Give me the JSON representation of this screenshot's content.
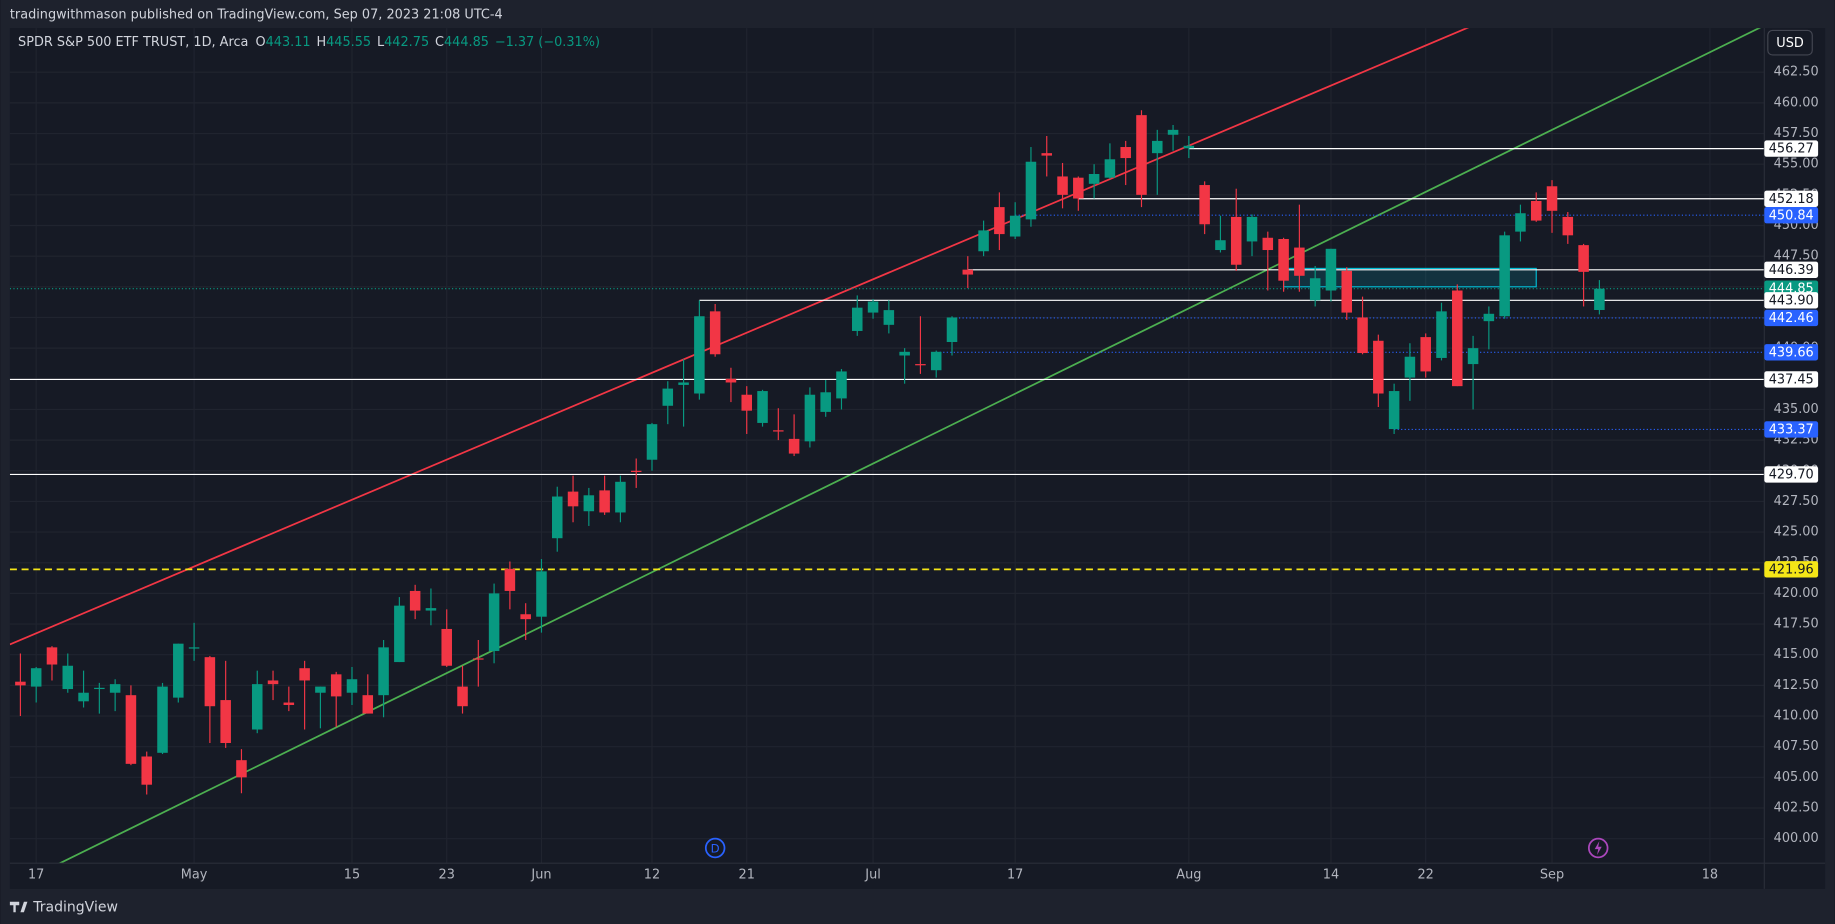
{
  "publisher_line": "tradingwithmason published on TradingView.com, Sep 07, 2023 21:08 UTC-4",
  "brand": "TradingView",
  "currency_button": "USD",
  "dividend_marker": "D",
  "chart_data": {
    "type": "candlestick",
    "title": "SPDR S&P 500 ETF TRUST, 1D, Arca",
    "header_fields": [
      {
        "key": "O",
        "value": 443.11
      },
      {
        "key": "H",
        "value": 445.55
      },
      {
        "key": "L",
        "value": 442.75
      },
      {
        "key": "C",
        "value": 444.85
      }
    ],
    "change": "−1.37 (−0.31%)",
    "up_color": "#089981",
    "down_color": "#f23645",
    "categories": [
      "2023-04-14",
      "2023-04-17",
      "2023-04-18",
      "2023-04-19",
      "2023-04-20",
      "2023-04-21",
      "2023-04-24",
      "2023-04-25",
      "2023-04-26",
      "2023-04-27",
      "2023-04-28",
      "2023-05-01",
      "2023-05-02",
      "2023-05-03",
      "2023-05-04",
      "2023-05-05",
      "2023-05-08",
      "2023-05-09",
      "2023-05-10",
      "2023-05-11",
      "2023-05-12",
      "2023-05-15",
      "2023-05-16",
      "2023-05-17",
      "2023-05-18",
      "2023-05-19",
      "2023-05-22",
      "2023-05-23",
      "2023-05-24",
      "2023-05-25",
      "2023-05-26",
      "2023-05-30",
      "2023-05-31",
      "2023-06-01",
      "2023-06-02",
      "2023-06-05",
      "2023-06-06",
      "2023-06-07",
      "2023-06-08",
      "2023-06-09",
      "2023-06-12",
      "2023-06-13",
      "2023-06-14",
      "2023-06-15",
      "2023-06-16",
      "2023-06-20",
      "2023-06-21",
      "2023-06-22",
      "2023-06-23",
      "2023-06-26",
      "2023-06-27",
      "2023-06-28",
      "2023-06-29",
      "2023-06-30",
      "2023-07-03",
      "2023-07-05",
      "2023-07-06",
      "2023-07-07",
      "2023-07-10",
      "2023-07-11",
      "2023-07-12",
      "2023-07-13",
      "2023-07-14",
      "2023-07-17",
      "2023-07-18",
      "2023-07-19",
      "2023-07-20",
      "2023-07-21",
      "2023-07-24",
      "2023-07-25",
      "2023-07-26",
      "2023-07-27",
      "2023-07-28",
      "2023-07-31",
      "2023-08-01",
      "2023-08-02",
      "2023-08-03",
      "2023-08-04",
      "2023-08-07",
      "2023-08-08",
      "2023-08-09",
      "2023-08-10",
      "2023-08-11",
      "2023-08-14",
      "2023-08-15",
      "2023-08-16",
      "2023-08-17",
      "2023-08-18",
      "2023-08-21",
      "2023-08-22",
      "2023-08-23",
      "2023-08-24",
      "2023-08-25",
      "2023-08-28",
      "2023-08-29",
      "2023-08-30",
      "2023-08-31",
      "2023-09-01",
      "2023-09-05",
      "2023-09-06",
      "2023-09-07"
    ],
    "open": [
      412.8,
      412.4,
      415.6,
      412.2,
      411.2,
      412.2,
      411.9,
      411.7,
      406.7,
      407.0,
      411.5,
      415.5,
      414.8,
      411.3,
      406.4,
      408.9,
      412.9,
      411.1,
      413.9,
      411.9,
      413.4,
      411.9,
      411.7,
      411.7,
      414.4,
      420.2,
      418.6,
      417.1,
      412.4,
      414.7,
      415.3,
      422.0,
      418.3,
      418.1,
      424.5,
      428.3,
      426.7,
      428.4,
      426.6,
      430.0,
      430.9,
      435.3,
      437.0,
      436.3,
      443.0,
      437.5,
      436.2,
      433.9,
      433.3,
      432.6,
      432.4,
      434.8,
      435.9,
      441.4,
      442.9,
      441.9,
      439.4,
      438.7,
      438.2,
      440.5,
      446.4,
      447.9,
      451.5,
      449.1,
      450.5,
      455.9,
      454.0,
      453.9,
      453.4,
      453.9,
      456.4,
      459.0,
      455.9,
      457.4,
      456.3,
      453.3,
      448.0,
      450.7,
      448.7,
      449.0,
      448.9,
      448.2,
      443.9,
      444.7,
      446.3,
      442.5,
      440.6,
      433.4,
      437.6,
      440.9,
      439.2,
      444.7,
      438.7,
      442.2,
      442.6,
      449.5,
      452.0,
      453.2,
      450.7,
      448.4,
      443.11
    ],
    "high": [
      415.1,
      414.0,
      415.7,
      415.1,
      413.7,
      412.7,
      413.0,
      412.5,
      407.1,
      412.7,
      415.9,
      417.6,
      414.9,
      414.5,
      407.3,
      413.7,
      413.7,
      412.4,
      414.5,
      412.4,
      413.6,
      414.0,
      413.4,
      416.2,
      419.7,
      420.7,
      420.4,
      418.7,
      414.1,
      416.2,
      420.8,
      422.6,
      419.2,
      422.8,
      428.7,
      429.6,
      428.6,
      429.6,
      429.6,
      431.0,
      433.9,
      437.3,
      439.1,
      443.9,
      443.6,
      438.4,
      436.9,
      436.6,
      435.1,
      434.6,
      436.8,
      437.4,
      438.3,
      444.3,
      444.0,
      443.9,
      440.0,
      442.6,
      439.8,
      442.6,
      447.5,
      450.4,
      452.7,
      451.9,
      456.4,
      457.3,
      455.1,
      454.0,
      455.0,
      456.7,
      456.9,
      459.4,
      457.8,
      458.2,
      457.3,
      453.6,
      450.8,
      453.0,
      450.9,
      449.5,
      449.0,
      451.7,
      446.7,
      448.1,
      446.6,
      444.2,
      441.1,
      437.1,
      440.4,
      441.2,
      443.7,
      445.2,
      441.0,
      443.4,
      449.5,
      451.7,
      452.7,
      453.7,
      451.1,
      448.5,
      445.55
    ],
    "low": [
      410.0,
      411.1,
      412.9,
      411.9,
      410.7,
      410.2,
      410.4,
      406.0,
      403.6,
      406.9,
      411.1,
      414.5,
      407.8,
      407.4,
      403.7,
      408.6,
      411.3,
      410.4,
      408.9,
      409.0,
      409.1,
      410.9,
      410.2,
      409.9,
      414.4,
      417.9,
      417.4,
      414.0,
      410.2,
      412.4,
      414.3,
      418.7,
      416.2,
      416.8,
      423.4,
      425.8,
      425.5,
      426.4,
      425.8,
      428.6,
      430.0,
      433.8,
      433.6,
      435.8,
      439.3,
      435.6,
      433.0,
      433.6,
      432.5,
      431.2,
      431.9,
      434.4,
      435.0,
      441.0,
      442.4,
      441.2,
      437.1,
      437.9,
      437.6,
      439.4,
      444.9,
      447.5,
      448.0,
      448.9,
      449.9,
      454.0,
      451.4,
      451.2,
      452.2,
      453.8,
      453.3,
      451.5,
      452.5,
      456.1,
      455.5,
      449.3,
      447.8,
      446.3,
      447.5,
      444.7,
      444.6,
      444.6,
      443.4,
      443.8,
      442.3,
      439.5,
      435.2,
      433.0,
      435.7,
      437.6,
      439.0,
      436.9,
      435.0,
      439.9,
      442.4,
      448.7,
      450.3,
      449.4,
      448.5,
      443.4,
      442.75
    ],
    "close": [
      412.5,
      413.9,
      414.2,
      414.1,
      411.9,
      412.3,
      412.6,
      406.1,
      404.4,
      412.4,
      415.9,
      415.6,
      410.8,
      407.8,
      405.0,
      412.6,
      412.6,
      410.9,
      412.9,
      412.4,
      411.6,
      413.0,
      410.2,
      415.6,
      419.0,
      418.6,
      418.8,
      414.1,
      410.8,
      414.6,
      420.0,
      420.2,
      417.9,
      421.8,
      427.9,
      427.1,
      428.0,
      426.6,
      429.1,
      429.9,
      433.8,
      436.7,
      437.2,
      442.6,
      439.5,
      437.2,
      434.9,
      436.5,
      433.2,
      431.4,
      436.2,
      436.4,
      438.1,
      443.3,
      443.8,
      443.1,
      439.7,
      438.6,
      439.7,
      442.5,
      446.0,
      449.6,
      449.3,
      450.8,
      455.2,
      455.7,
      452.5,
      452.2,
      454.2,
      455.4,
      455.5,
      452.5,
      456.9,
      457.8,
      456.5,
      450.1,
      448.8,
      446.8,
      450.7,
      448.0,
      445.5,
      445.9,
      445.7,
      448.1,
      442.9,
      439.6,
      436.3,
      436.5,
      439.3,
      438.1,
      443.0,
      436.9,
      440.0,
      442.8,
      449.2,
      451.0,
      450.4,
      451.2,
      449.2,
      446.22,
      444.85
    ],
    "ylim": [
      398.0,
      466.1
    ],
    "yticks": [
      {
        "value": 400,
        "label": "400.00"
      },
      {
        "value": 402.5,
        "label": "402.50"
      },
      {
        "value": 405,
        "label": "405.00"
      },
      {
        "value": 407.5,
        "label": "407.50"
      },
      {
        "value": 410,
        "label": "410.00"
      },
      {
        "value": 412.5,
        "label": "412.50"
      },
      {
        "value": 415,
        "label": "415.00"
      },
      {
        "value": 417.5,
        "label": "417.50"
      },
      {
        "value": 420,
        "label": "420.00"
      },
      {
        "value": 422.5,
        "label": "422.50"
      },
      {
        "value": 425,
        "label": "425.00"
      },
      {
        "value": 427.5,
        "label": "427.50"
      },
      {
        "value": 430,
        "label": "430.00"
      },
      {
        "value": 432.5,
        "label": "432.50"
      },
      {
        "value": 435,
        "label": "435.00"
      },
      {
        "value": 437.5,
        "label": "437.50"
      },
      {
        "value": 440,
        "label": "440.00"
      },
      {
        "value": 442.5,
        "label": "442.50"
      },
      {
        "value": 445,
        "label": "445.00"
      },
      {
        "value": 447.5,
        "label": "447.50"
      },
      {
        "value": 450,
        "label": "450.00"
      },
      {
        "value": 452.5,
        "label": "452.50"
      },
      {
        "value": 455,
        "label": "455.00"
      },
      {
        "value": 457.5,
        "label": "457.50"
      },
      {
        "value": 460,
        "label": "460.00"
      },
      {
        "value": 462.5,
        "label": "462.50"
      }
    ],
    "xticks": [
      {
        "value": "2023-04-17",
        "label": "17"
      },
      {
        "value": "2023-05-01",
        "label": "May"
      },
      {
        "value": "2023-05-15",
        "label": "15"
      },
      {
        "value": "2023-05-23",
        "label": "23"
      },
      {
        "value": "2023-06-01",
        "label": "Jun"
      },
      {
        "value": "2023-06-12",
        "label": "12"
      },
      {
        "value": "2023-06-21",
        "label": "21"
      },
      {
        "value": "2023-07-03",
        "label": "Jul"
      },
      {
        "value": "2023-07-17",
        "label": "17"
      },
      {
        "value": "2023-08-01",
        "label": "Aug"
      },
      {
        "value": "2023-08-14",
        "label": "14"
      },
      {
        "value": "2023-08-22",
        "label": "22"
      },
      {
        "value": "2023-09-01",
        "label": "Sep"
      },
      {
        "value": "2023-09-18",
        "label": "18"
      }
    ],
    "grid": true,
    "price_lines": [
      {
        "value": 456.27,
        "from": "2023-08-01",
        "color": "#ffffff",
        "style": "solid"
      },
      {
        "value": 452.18,
        "from": "2023-07-21",
        "color": "#ffffff",
        "style": "solid"
      },
      {
        "value": 450.84,
        "from": "2023-07-17",
        "color": "#2962ff",
        "style": "dotted"
      },
      {
        "value": 446.39,
        "from": "2023-07-12",
        "color": "#ffffff",
        "style": "solid"
      },
      {
        "value": 444.85,
        "from": null,
        "color": "#089981",
        "style": "dotted"
      },
      {
        "value": 443.9,
        "label": "443.90",
        "from": "2023-06-15",
        "color": "#ffffff",
        "style": "solid"
      },
      {
        "value": 442.46,
        "from": "2023-07-11",
        "color": "#2962ff",
        "style": "dotted"
      },
      {
        "value": 439.66,
        "from": "2023-07-10",
        "color": "#2962ff",
        "style": "dotted"
      },
      {
        "value": 437.45,
        "from": null,
        "color": "#ffffff",
        "style": "solid"
      },
      {
        "value": 433.37,
        "from": "2023-08-18",
        "color": "#2962ff",
        "style": "dotted"
      },
      {
        "value": 429.7,
        "label": "429.70",
        "from": null,
        "color": "#ffffff",
        "style": "solid"
      },
      {
        "value": 421.96,
        "from": null,
        "color": "#f5e617",
        "style": "dashed"
      }
    ],
    "trend_lines": [
      {
        "color": "#f23645",
        "points": [
          [
            "2023-04-14",
            416.2
          ],
          [
            "2023-08-16",
            462.5
          ]
        ]
      },
      {
        "color": "#4caf50",
        "points": [
          [
            "2023-05-26",
            415.4
          ],
          [
            "2023-09-07",
            459.7
          ]
        ]
      }
    ],
    "boxes": [
      {
        "color": "#00bcd4",
        "from": "2023-08-09",
        "to": "2023-08-31",
        "top": 446.5,
        "bottom": 445.0
      }
    ]
  }
}
